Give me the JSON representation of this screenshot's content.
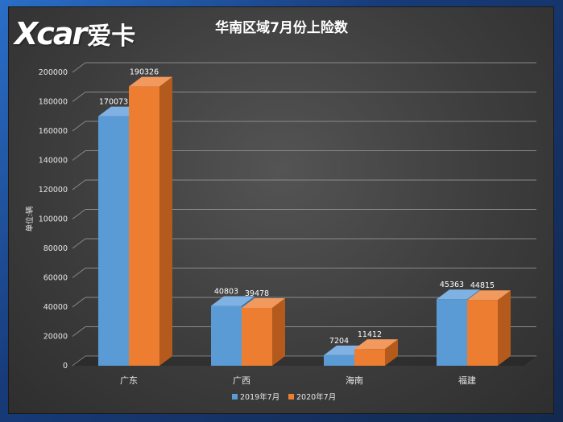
{
  "logo": {
    "latin": "Xcar",
    "cn": "爱卡"
  },
  "colors": {
    "series1": "#5b9bd5",
    "series1_top": "#7fb2e3",
    "series1_side": "#3f74a8",
    "series2": "#ed7d31",
    "series2_top": "#f29a5e",
    "series2_side": "#b45a1d",
    "grid": "#8a8a8a"
  },
  "chart_data": {
    "type": "bar",
    "title": "华南区域7月份上险数",
    "ylabel": "单位:辆",
    "xlabel": "",
    "categories": [
      "广东",
      "广西",
      "海南",
      "福建"
    ],
    "series": [
      {
        "name": "2019年7月",
        "values": [
          170073,
          40803,
          7204,
          45363
        ]
      },
      {
        "name": "2020年7月",
        "values": [
          190326,
          39478,
          11412,
          44815
        ]
      }
    ],
    "ylim": [
      0,
      200000
    ],
    "yticks": [
      0,
      20000,
      40000,
      60000,
      80000,
      100000,
      120000,
      140000,
      160000,
      180000,
      200000
    ],
    "legend_position": "bottom",
    "grid": true
  }
}
